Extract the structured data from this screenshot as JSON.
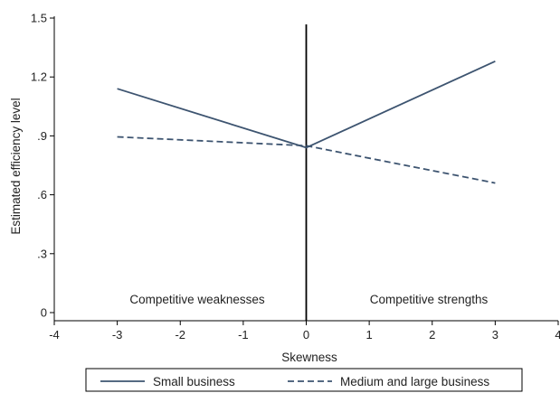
{
  "chart_data": {
    "type": "line",
    "xlabel": "Skewness",
    "ylabel": "Estimated efficiency level",
    "xlim": [
      -4,
      4
    ],
    "ylim": [
      0,
      1.5
    ],
    "xticks": [
      -4,
      -3,
      -2,
      -1,
      0,
      1,
      2,
      3,
      4
    ],
    "xtick_labels": [
      "-4",
      "-3",
      "-2",
      "-1",
      "0",
      "1",
      "2",
      "3",
      "4"
    ],
    "yticks": [
      0,
      0.3,
      0.6,
      0.9,
      1.2,
      1.5
    ],
    "ytick_labels": [
      "0",
      ".3",
      ".6",
      ".9",
      "1.2",
      "1.5"
    ],
    "grid": false,
    "legend_position": "bottom",
    "series": [
      {
        "name": "Small business",
        "style": "solid",
        "color": "#3d5470",
        "x": [
          -3,
          0,
          3
        ],
        "y": [
          1.14,
          0.84,
          1.28
        ]
      },
      {
        "name": "Medium and large business",
        "style": "dashed",
        "color": "#3d5470",
        "x": [
          -3,
          0,
          3
        ],
        "y": [
          0.895,
          0.85,
          0.66
        ]
      }
    ],
    "vertical_line": {
      "x": 0,
      "color": "#000000"
    },
    "annotations": [
      {
        "text": "Competitive weaknesses",
        "region": "left"
      },
      {
        "text": "Competitive strengths",
        "region": "right"
      }
    ]
  }
}
